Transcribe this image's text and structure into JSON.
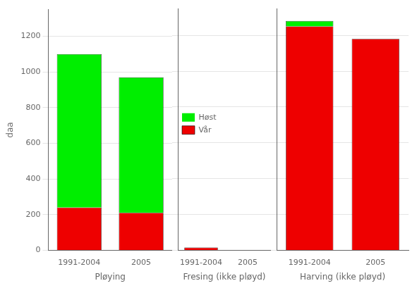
{
  "chart_data": [
    {
      "type": "bar",
      "stacked": true,
      "categories": [
        "1991-2004",
        "2005"
      ],
      "xlabel": "Pløying",
      "ylabel": "daa",
      "series": [
        {
          "name": "Vår",
          "color": "#ee0000",
          "values": [
            240,
            210
          ]
        },
        {
          "name": "Høst",
          "color": "#00ee00",
          "values": [
            860,
            760
          ]
        }
      ],
      "ylim": [
        0,
        1350
      ],
      "yticks": [
        0,
        200,
        400,
        600,
        800,
        1000,
        1200
      ],
      "grid": true,
      "legend": false
    },
    {
      "type": "bar",
      "stacked": true,
      "categories": [
        "1991-2004",
        "2005"
      ],
      "xlabel": "Fresing (ikke pløyd)",
      "series": [
        {
          "name": "Vår",
          "color": "#ee0000",
          "values": [
            15,
            0
          ]
        },
        {
          "name": "Høst",
          "color": "#00ee00",
          "values": [
            0,
            0
          ]
        }
      ],
      "ylim": [
        0,
        1350
      ],
      "yticks": [
        0,
        200,
        400,
        600,
        800,
        1000,
        1200
      ],
      "grid": true,
      "tick_labels": "x",
      "legend": "upper center"
    },
    {
      "type": "bar",
      "stacked": true,
      "categories": [
        "1991-2004",
        "2005"
      ],
      "xlabel": "Harving (ikke pløyd)",
      "series": [
        {
          "name": "Vår",
          "color": "#ee0000",
          "values": [
            1250,
            1180
          ]
        },
        {
          "name": "Høst",
          "color": "#00ee00",
          "values": [
            30,
            0
          ]
        }
      ],
      "ylim": [
        0,
        1350
      ],
      "yticks": [
        0,
        200,
        400,
        600,
        800,
        1000,
        1200
      ],
      "grid": true,
      "tick_labels": "x",
      "legend": false
    }
  ]
}
